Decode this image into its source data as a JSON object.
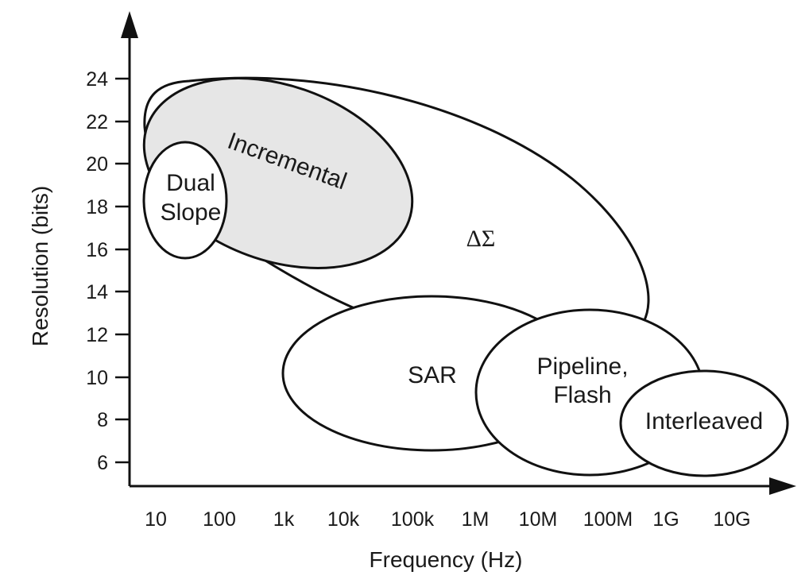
{
  "axes": {
    "x_title": "Frequency (Hz)",
    "y_title": "Resolution (bits)",
    "x_ticks": [
      "10",
      "100",
      "1k",
      "10k",
      "100k",
      "1M",
      "10M",
      "100M",
      "1G",
      "10G"
    ],
    "y_ticks": [
      "24",
      "22",
      "20",
      "18",
      "16",
      "14",
      "12",
      "10",
      "8",
      "6"
    ]
  },
  "regions": {
    "delta_sigma": {
      "label": "ΔΣ",
      "fill": "#ffffff"
    },
    "incremental": {
      "label": "Incremental",
      "fill": "#e6e6e6"
    },
    "dual_slope": {
      "label_line1": "Dual",
      "label_line2": "Slope",
      "fill": "#ffffff"
    },
    "sar": {
      "label": "SAR",
      "fill": "#ffffff"
    },
    "pipeline_flash": {
      "label_line1": "Pipeline,",
      "label_line2": "Flash",
      "fill": "#ffffff"
    },
    "interleaved": {
      "label": "Interleaved",
      "fill": "#ffffff"
    }
  },
  "colors": {
    "stroke": "#111111",
    "background": "#ffffff"
  }
}
